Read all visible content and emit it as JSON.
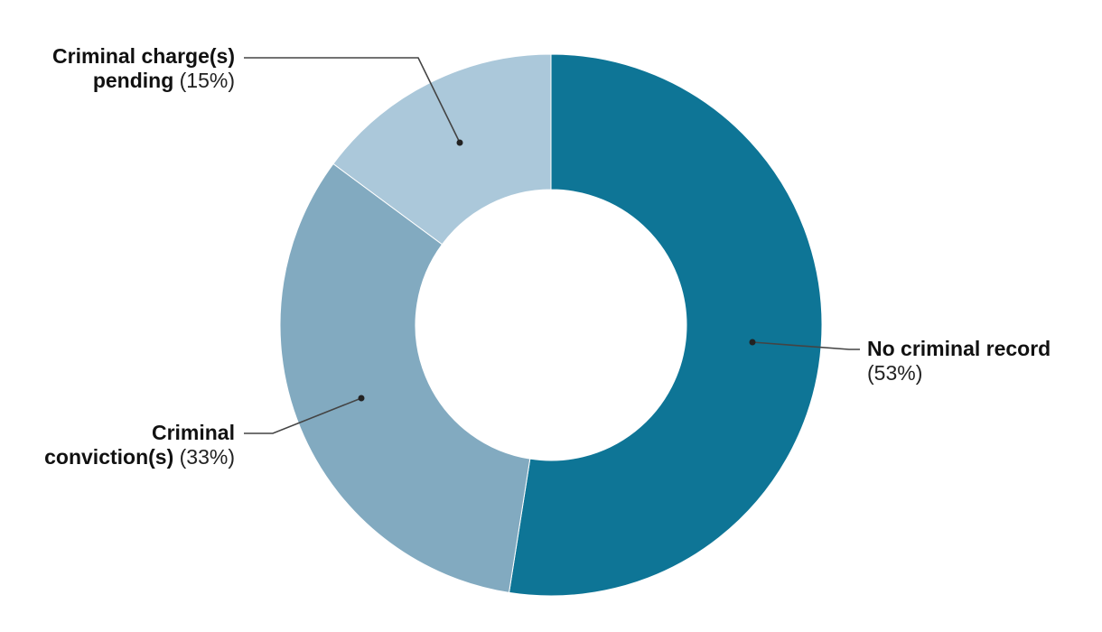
{
  "chart_data": {
    "type": "pie",
    "donut": true,
    "slices": [
      {
        "label": "No criminal record",
        "value": 53,
        "value_label": "(53%)",
        "color": "#0e7596"
      },
      {
        "label": "Criminal conviction(s)",
        "value": 33,
        "value_label": "(33%)",
        "color": "#82aac0"
      },
      {
        "label": "Criminal charge(s) pending",
        "value": 15,
        "value_label": "(15%)",
        "color": "#abc8da"
      }
    ],
    "start": "top",
    "direction": "clockwise"
  },
  "labels": {
    "no_record_line1": "No criminal record",
    "no_record_pct": "(53%)",
    "conviction_line1": "Criminal",
    "conviction_line2": "conviction(s)",
    "conviction_pct": "(33%)",
    "pending_line1": "Criminal charge(s)",
    "pending_line2": "pending",
    "pending_pct": "(15%)"
  }
}
